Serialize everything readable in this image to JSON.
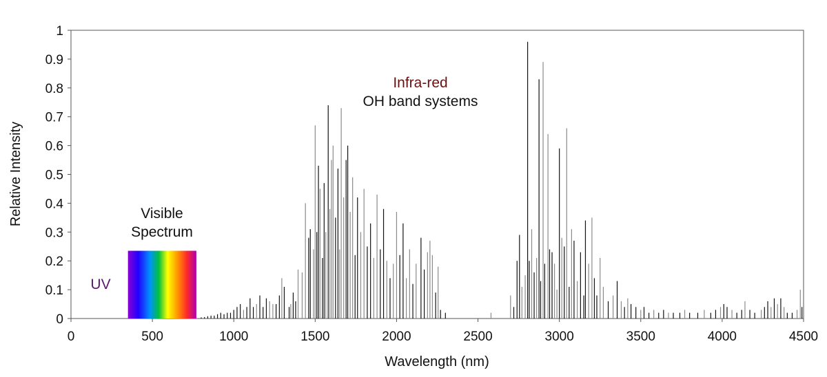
{
  "chart_data": {
    "type": "bar",
    "xlabel": "Wavelength (nm)",
    "ylabel": "Relative Intensity",
    "xlim": [
      0,
      4500
    ],
    "ylim": [
      0,
      1
    ],
    "x_ticks": [
      "0",
      "500",
      "1000",
      "1500",
      "2000",
      "2500",
      "3000",
      "3500",
      "4000",
      "4500"
    ],
    "y_ticks": [
      "0",
      "0.1",
      "0.2",
      "0.3",
      "0.4",
      "0.5",
      "0.6",
      "0.7",
      "0.8",
      "0.9",
      "1"
    ],
    "grid": false,
    "annotations": {
      "uv": "UV",
      "visible_line1": "Visible",
      "visible_line2": "Spectrum",
      "infrared": "Infra-red",
      "oh_bands": "OH band systems"
    },
    "visible_band": {
      "x_start": 350,
      "x_end": 770,
      "height": 0.235
    },
    "colors": {
      "uv_text": "#5a1a6e",
      "infrared_text": "#6b1010",
      "line_dark": "#111111",
      "line_light": "#8a8a8a"
    },
    "series": [
      {
        "values": [
          [
            1395,
            0.17,
            "l"
          ],
          [
            1420,
            0.16,
            "l"
          ],
          [
            1440,
            0.4,
            "l"
          ],
          [
            1460,
            0.28,
            "d"
          ],
          [
            1470,
            0.31,
            "d"
          ],
          [
            1490,
            0.24,
            "l"
          ],
          [
            1500,
            0.67,
            "l"
          ],
          [
            1510,
            0.3,
            "d"
          ],
          [
            1520,
            0.53,
            "d"
          ],
          [
            1530,
            0.45,
            "l"
          ],
          [
            1545,
            0.21,
            "d"
          ],
          [
            1555,
            0.47,
            "d"
          ],
          [
            1565,
            0.3,
            "l"
          ],
          [
            1580,
            0.74,
            "d"
          ],
          [
            1590,
            0.38,
            "l"
          ],
          [
            1600,
            0.55,
            "l"
          ],
          [
            1610,
            0.6,
            "l"
          ],
          [
            1625,
            0.35,
            "d"
          ],
          [
            1640,
            0.52,
            "d"
          ],
          [
            1650,
            0.24,
            "l"
          ],
          [
            1660,
            0.73,
            "l"
          ],
          [
            1675,
            0.42,
            "l"
          ],
          [
            1690,
            0.55,
            "d"
          ],
          [
            1700,
            0.6,
            "d"
          ],
          [
            1715,
            0.37,
            "l"
          ],
          [
            1730,
            0.49,
            "l"
          ],
          [
            1745,
            0.22,
            "d"
          ],
          [
            1760,
            0.42,
            "d"
          ],
          [
            1780,
            0.3,
            "l"
          ],
          [
            1800,
            0.45,
            "l"
          ],
          [
            1820,
            0.25,
            "d"
          ],
          [
            1840,
            0.33,
            "d"
          ],
          [
            1860,
            0.21,
            "l"
          ],
          [
            1880,
            0.43,
            "l"
          ],
          [
            1900,
            0.24,
            "d"
          ],
          [
            1920,
            0.38,
            "d"
          ],
          [
            1940,
            0.2,
            "l"
          ],
          [
            1960,
            0.14,
            "d"
          ],
          [
            1980,
            0.19,
            "l"
          ],
          [
            2000,
            0.37,
            "l"
          ],
          [
            2020,
            0.22,
            "d"
          ],
          [
            2040,
            0.33,
            "d"
          ],
          [
            2060,
            0.14,
            "l"
          ],
          [
            2080,
            0.24,
            "l"
          ],
          [
            2100,
            0.12,
            "d"
          ],
          [
            2120,
            0.19,
            "l"
          ],
          [
            2150,
            0.28,
            "d"
          ],
          [
            2170,
            0.17,
            "d"
          ],
          [
            2190,
            0.23,
            "l"
          ],
          [
            2205,
            0.27,
            "l"
          ],
          [
            2220,
            0.22,
            "l"
          ],
          [
            2240,
            0.09,
            "d"
          ],
          [
            2255,
            0.18,
            "l"
          ],
          [
            2270,
            0.03,
            "d"
          ],
          [
            2300,
            0.02,
            "d"
          ],
          [
            1380,
            0.06,
            "d"
          ],
          [
            1365,
            0.09,
            "d"
          ],
          [
            1350,
            0.05,
            "l"
          ],
          [
            1340,
            0.04,
            "d"
          ],
          [
            1310,
            0.11,
            "d"
          ],
          [
            1295,
            0.14,
            "l"
          ],
          [
            1280,
            0.08,
            "d"
          ],
          [
            1260,
            0.05,
            "d"
          ],
          [
            1240,
            0.05,
            "l"
          ],
          [
            1220,
            0.06,
            "l"
          ],
          [
            1200,
            0.07,
            "d"
          ],
          [
            1180,
            0.04,
            "d"
          ],
          [
            1160,
            0.08,
            "d"
          ],
          [
            1140,
            0.05,
            "l"
          ],
          [
            1120,
            0.04,
            "d"
          ],
          [
            1100,
            0.07,
            "d"
          ],
          [
            1080,
            0.04,
            "d"
          ],
          [
            1060,
            0.03,
            "l"
          ],
          [
            1040,
            0.05,
            "d"
          ],
          [
            1020,
            0.04,
            "d"
          ],
          [
            1000,
            0.03,
            "d"
          ],
          [
            980,
            0.02,
            "d"
          ],
          [
            960,
            0.02,
            "d"
          ],
          [
            940,
            0.015,
            "d"
          ],
          [
            920,
            0.02,
            "d"
          ],
          [
            900,
            0.015,
            "d"
          ],
          [
            880,
            0.01,
            "d"
          ],
          [
            860,
            0.01,
            "d"
          ],
          [
            840,
            0.008,
            "d"
          ],
          [
            820,
            0.005,
            "d"
          ],
          [
            800,
            0.004,
            "d"
          ],
          [
            2580,
            0.02,
            "l"
          ],
          [
            2700,
            0.08,
            "l"
          ],
          [
            2720,
            0.04,
            "d"
          ],
          [
            2740,
            0.2,
            "d"
          ],
          [
            2755,
            0.29,
            "d"
          ],
          [
            2770,
            0.11,
            "l"
          ],
          [
            2790,
            0.15,
            "l"
          ],
          [
            2805,
            0.96,
            "d"
          ],
          [
            2815,
            0.2,
            "d"
          ],
          [
            2830,
            0.31,
            "l"
          ],
          [
            2845,
            0.16,
            "d"
          ],
          [
            2860,
            0.21,
            "l"
          ],
          [
            2875,
            0.83,
            "d"
          ],
          [
            2885,
            0.13,
            "d"
          ],
          [
            2900,
            0.89,
            "l"
          ],
          [
            2910,
            0.19,
            "d"
          ],
          [
            2930,
            0.64,
            "l"
          ],
          [
            2940,
            0.24,
            "d"
          ],
          [
            2955,
            0.23,
            "d"
          ],
          [
            2970,
            0.19,
            "l"
          ],
          [
            2985,
            0.1,
            "l"
          ],
          [
            3000,
            0.59,
            "d"
          ],
          [
            3015,
            0.28,
            "l"
          ],
          [
            3030,
            0.25,
            "d"
          ],
          [
            3045,
            0.66,
            "l"
          ],
          [
            3060,
            0.11,
            "d"
          ],
          [
            3075,
            0.31,
            "l"
          ],
          [
            3090,
            0.27,
            "d"
          ],
          [
            3110,
            0.13,
            "l"
          ],
          [
            3130,
            0.23,
            "d"
          ],
          [
            3150,
            0.08,
            "d"
          ],
          [
            3160,
            0.34,
            "d"
          ],
          [
            3180,
            0.19,
            "l"
          ],
          [
            3200,
            0.35,
            "l"
          ],
          [
            3215,
            0.14,
            "d"
          ],
          [
            3230,
            0.08,
            "d"
          ],
          [
            3250,
            0.21,
            "l"
          ],
          [
            3270,
            0.11,
            "l"
          ],
          [
            3300,
            0.06,
            "d"
          ],
          [
            3330,
            0.08,
            "l"
          ],
          [
            3355,
            0.13,
            "d"
          ],
          [
            3380,
            0.06,
            "l"
          ],
          [
            3400,
            0.04,
            "d"
          ],
          [
            3420,
            0.07,
            "l"
          ],
          [
            3440,
            0.05,
            "d"
          ],
          [
            3470,
            0.04,
            "d"
          ],
          [
            3500,
            0.03,
            "l"
          ],
          [
            3520,
            0.04,
            "d"
          ],
          [
            3550,
            0.02,
            "d"
          ],
          [
            3580,
            0.03,
            "l"
          ],
          [
            3610,
            0.02,
            "d"
          ],
          [
            3640,
            0.03,
            "d"
          ],
          [
            3670,
            0.02,
            "l"
          ],
          [
            3700,
            0.02,
            "d"
          ],
          [
            3740,
            0.02,
            "d"
          ],
          [
            3770,
            0.03,
            "l"
          ],
          [
            3800,
            0.02,
            "d"
          ],
          [
            3850,
            0.02,
            "d"
          ],
          [
            3890,
            0.03,
            "l"
          ],
          [
            3930,
            0.02,
            "d"
          ],
          [
            3960,
            0.03,
            "d"
          ],
          [
            3990,
            0.04,
            "l"
          ],
          [
            4010,
            0.05,
            "d"
          ],
          [
            4030,
            0.04,
            "d"
          ],
          [
            4060,
            0.03,
            "l"
          ],
          [
            4090,
            0.02,
            "d"
          ],
          [
            4120,
            0.03,
            "d"
          ],
          [
            4140,
            0.06,
            "l"
          ],
          [
            4170,
            0.03,
            "d"
          ],
          [
            4200,
            0.02,
            "d"
          ],
          [
            4240,
            0.03,
            "l"
          ],
          [
            4260,
            0.04,
            "d"
          ],
          [
            4280,
            0.06,
            "d"
          ],
          [
            4300,
            0.04,
            "l"
          ],
          [
            4320,
            0.07,
            "d"
          ],
          [
            4340,
            0.05,
            "l"
          ],
          [
            4360,
            0.07,
            "d"
          ],
          [
            4380,
            0.04,
            "l"
          ],
          [
            4400,
            0.02,
            "d"
          ],
          [
            4430,
            0.02,
            "d"
          ],
          [
            4460,
            0.03,
            "l"
          ],
          [
            4480,
            0.1,
            "l"
          ],
          [
            4490,
            0.04,
            "d"
          ]
        ]
      }
    ]
  }
}
